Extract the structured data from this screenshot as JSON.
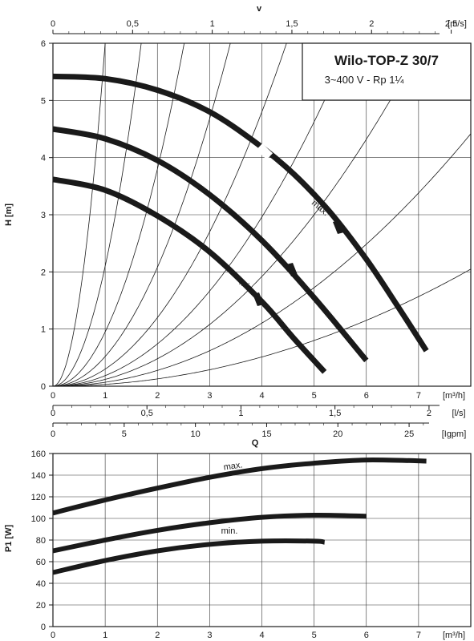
{
  "chart_data": [
    {
      "type": "line",
      "panel": "head",
      "title": "Wilo-TOP-Z 30/7",
      "subtitle": "3~400 V - Rp 1¼",
      "ylabel": "H [m]",
      "y_unit": "",
      "ylim": [
        0,
        6
      ],
      "y_ticks": [
        "0",
        "1",
        "2",
        "3",
        "4",
        "5",
        "6"
      ],
      "x_axes": [
        {
          "unit": "[m³/h]",
          "lim": [
            0,
            8
          ],
          "ticks": [
            {
              "v": 0,
              "label": "0"
            },
            {
              "v": 1,
              "label": "1"
            },
            {
              "v": 2,
              "label": "2"
            },
            {
              "v": 3,
              "label": "3"
            },
            {
              "v": 4,
              "label": "4"
            },
            {
              "v": 5,
              "label": "5"
            },
            {
              "v": 6,
              "label": "6"
            },
            {
              "v": 7,
              "label": "7"
            }
          ]
        },
        {
          "unit": "[l/s]",
          "ticks": [
            {
              "v": 0,
              "label": "0"
            },
            {
              "v": 0.5,
              "label": "0,5"
            },
            {
              "v": 1,
              "label": "1"
            },
            {
              "v": 1.5,
              "label": "1,5"
            },
            {
              "v": 2,
              "label": "2"
            }
          ],
          "m3h_per_unit": 3.6
        },
        {
          "unit": "[Igpm]",
          "ticks": [
            {
              "v": 0,
              "label": "0"
            },
            {
              "v": 5,
              "label": "5"
            },
            {
              "v": 10,
              "label": "10"
            },
            {
              "v": 15,
              "label": "15"
            },
            {
              "v": 20,
              "label": "20"
            },
            {
              "v": 25,
              "label": "25"
            }
          ],
          "m3h_per_unit": 0.27277
        }
      ],
      "top_axis": {
        "title": "v",
        "unit": "[m/s]",
        "ticks": [
          {
            "v": 0,
            "label": "0"
          },
          {
            "v": 0.5,
            "label": "0,5"
          },
          {
            "v": 1,
            "label": "1"
          },
          {
            "v": 1.5,
            "label": "1,5"
          },
          {
            "v": 2,
            "label": "2"
          },
          {
            "v": 2.5,
            "label": "2,5"
          }
        ],
        "m3h_per_unit": 3.05
      },
      "bottom_title": "Q",
      "series": [
        {
          "name": "max.",
          "x": [
            0,
            1,
            2,
            3,
            3.9,
            4.6,
            5.3,
            6.0,
            6.6,
            7.15
          ],
          "y": [
            5.42,
            5.38,
            5.18,
            4.8,
            4.25,
            3.72,
            3.05,
            2.22,
            1.4,
            0.62
          ]
        },
        {
          "name": "",
          "x": [
            0,
            1,
            2,
            3,
            4,
            5,
            6.0
          ],
          "y": [
            4.5,
            4.33,
            3.95,
            3.35,
            2.55,
            1.55,
            0.45
          ]
        },
        {
          "name": "min.",
          "x": [
            0,
            1,
            2,
            3,
            4,
            4.6,
            5.2
          ],
          "y": [
            3.62,
            3.43,
            2.98,
            2.35,
            1.48,
            0.85,
            0.25
          ]
        }
      ],
      "system_curve_coefficients": [
        6.0,
        2.1,
        0.95,
        0.52,
        0.3,
        0.185,
        0.12,
        0.069,
        0.032
      ],
      "grid": true
    },
    {
      "type": "line",
      "panel": "power",
      "ylabel": "P1 [W]",
      "ylim": [
        0,
        160
      ],
      "y_ticks": [
        "0",
        "20",
        "40",
        "60",
        "80",
        "100",
        "120",
        "140",
        "160"
      ],
      "x_unit": "[m³/h]",
      "xlim": [
        0,
        8
      ],
      "x_ticks": [
        "0",
        "1",
        "2",
        "3",
        "4",
        "5",
        "6",
        "7"
      ],
      "series": [
        {
          "name": "max.",
          "x": [
            0,
            1,
            2,
            3,
            4,
            5,
            6,
            7.15
          ],
          "y": [
            105,
            117,
            128,
            138,
            146,
            151,
            154,
            153
          ]
        },
        {
          "name": "",
          "x": [
            0,
            1,
            2,
            3,
            4,
            5,
            6.0
          ],
          "y": [
            70,
            80,
            89,
            96,
            101,
            103,
            102
          ]
        },
        {
          "name": "min.",
          "x": [
            0,
            1,
            2,
            3,
            4,
            5,
            5.2
          ],
          "y": [
            50,
            61,
            70,
            76,
            79,
            79,
            78
          ]
        }
      ],
      "grid": true
    }
  ]
}
